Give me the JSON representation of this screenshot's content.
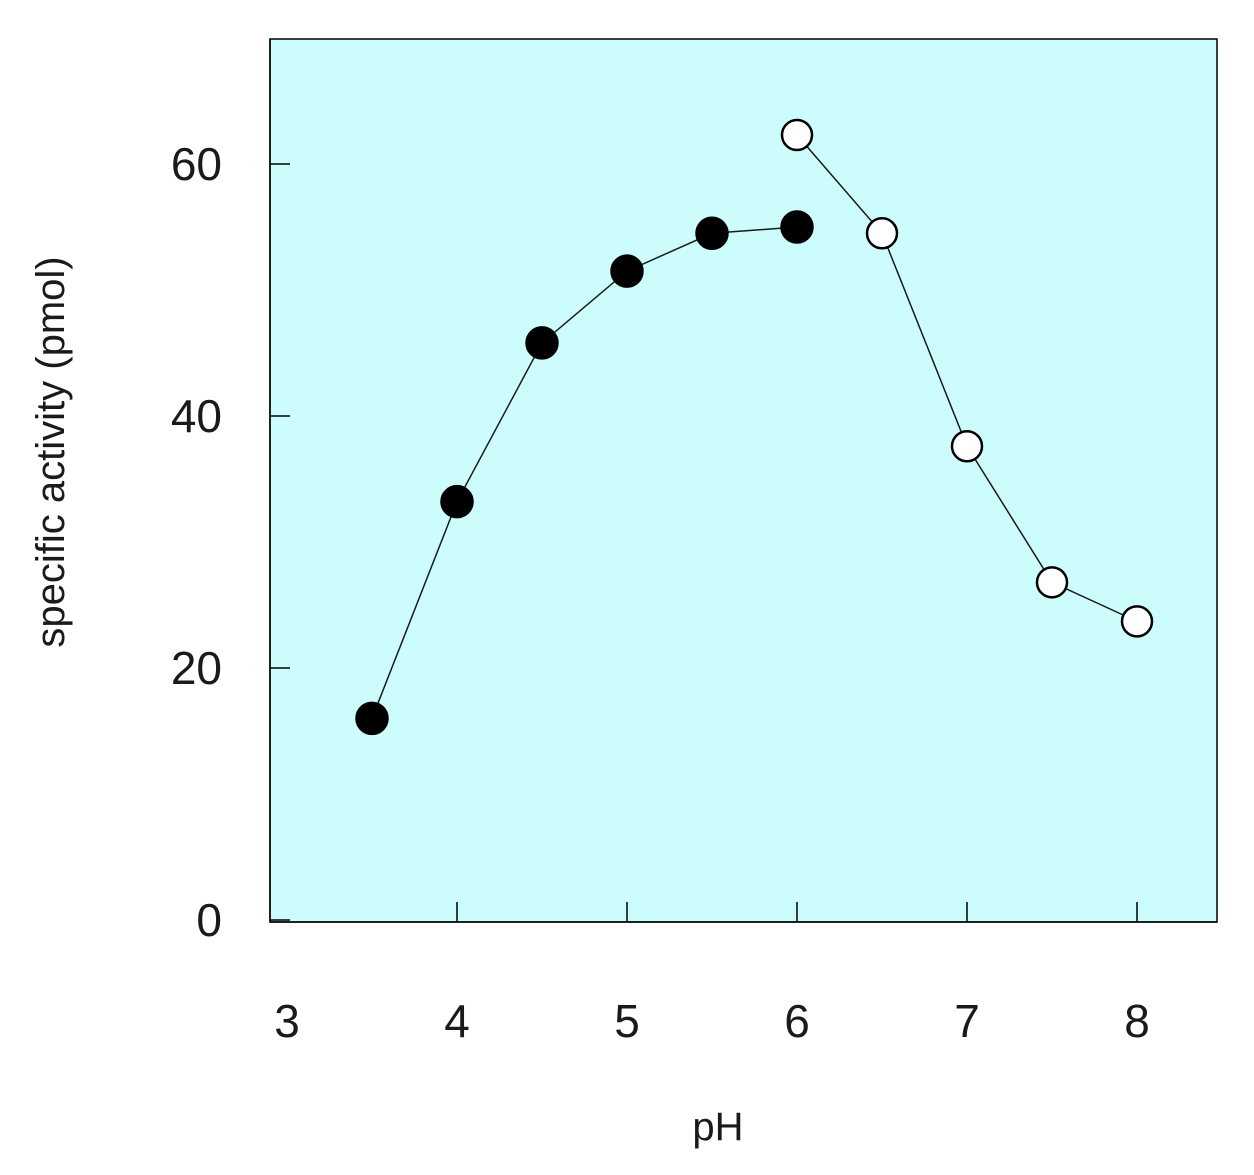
{
  "chart_data": {
    "type": "scatter",
    "title": "",
    "xlabel": "pH",
    "ylabel": "specific activity (pmol)",
    "xlim": [
      3,
      8.5
    ],
    "ylim": [
      0,
      70
    ],
    "x_ticks": [
      3,
      4,
      5,
      6,
      7,
      8
    ],
    "x_tick_labels": [
      "3",
      "4",
      "5",
      "6",
      "7",
      "8"
    ],
    "y_ticks": [
      0,
      20,
      40,
      60
    ],
    "y_tick_labels": [
      "0",
      "20",
      "40",
      "60"
    ],
    "grid": false,
    "plot_background": "#ccfcfc",
    "series": [
      {
        "marker": "filled-circle",
        "color": "#000000",
        "points": [
          {
            "x": 3.5,
            "y": 16
          },
          {
            "x": 4.0,
            "y": 33.2
          },
          {
            "x": 4.5,
            "y": 45.8
          },
          {
            "x": 5.0,
            "y": 51.5
          },
          {
            "x": 5.5,
            "y": 54.5
          },
          {
            "x": 6.0,
            "y": 55
          }
        ]
      },
      {
        "marker": "open-circle",
        "color": "#000000",
        "points": [
          {
            "x": 6.0,
            "y": 62.3
          },
          {
            "x": 6.5,
            "y": 54.5
          },
          {
            "x": 7.0,
            "y": 37.6
          },
          {
            "x": 7.5,
            "y": 26.8
          },
          {
            "x": 8.0,
            "y": 23.7
          }
        ]
      }
    ]
  }
}
